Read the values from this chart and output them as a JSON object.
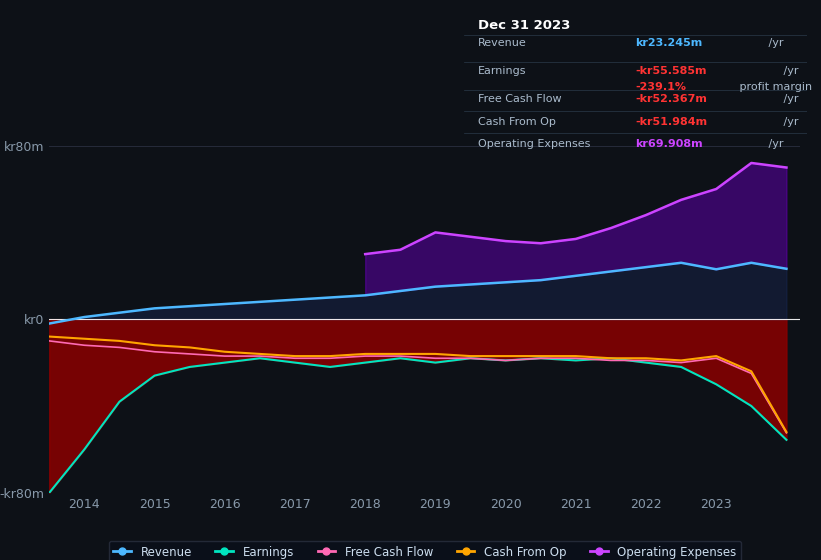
{
  "background_color": "#0d1117",
  "plot_bg_color": "#0d1117",
  "years": [
    2013.5,
    2014,
    2014.5,
    2015,
    2015.5,
    2016,
    2016.5,
    2017,
    2017.5,
    2018,
    2018.5,
    2019,
    2019.5,
    2020,
    2020.5,
    2021,
    2021.5,
    2022,
    2022.5,
    2023,
    2023.5,
    2024.0
  ],
  "revenue": [
    -2,
    1,
    3,
    5,
    6,
    7,
    8,
    9,
    10,
    11,
    13,
    15,
    16,
    17,
    18,
    20,
    22,
    24,
    26,
    23,
    26,
    23.245
  ],
  "earnings": [
    -80,
    -60,
    -38,
    -26,
    -22,
    -20,
    -18,
    -20,
    -22,
    -20,
    -18,
    -20,
    -18,
    -19,
    -18,
    -19,
    -18,
    -20,
    -22,
    -30,
    -40,
    -55.585
  ],
  "free_cash_flow": [
    -10,
    -12,
    -13,
    -15,
    -16,
    -17,
    -17,
    -18,
    -18,
    -17,
    -17,
    -18,
    -18,
    -19,
    -18,
    -18,
    -19,
    -19,
    -20,
    -18,
    -25,
    -52.367
  ],
  "cash_from_op": [
    -8,
    -9,
    -10,
    -12,
    -13,
    -15,
    -16,
    -17,
    -17,
    -16,
    -16,
    -16,
    -17,
    -17,
    -17,
    -17,
    -18,
    -18,
    -19,
    -17,
    -24,
    -51.984
  ],
  "operating_expenses": [
    0,
    0,
    0,
    0,
    0,
    0,
    0,
    0,
    0,
    30,
    32,
    40,
    38,
    36,
    35,
    37,
    42,
    48,
    55,
    60,
    72,
    69.908
  ],
  "ylim": [
    -80,
    80
  ],
  "xlim": [
    2013.5,
    2024.2
  ],
  "xlabel_ticks": [
    2014,
    2015,
    2016,
    2017,
    2018,
    2019,
    2020,
    2021,
    2022,
    2023
  ],
  "ytick_labels": [
    "kr80m",
    "kr0",
    "-kr80m"
  ],
  "ytick_positions": [
    80,
    0,
    -80
  ],
  "grid_color": "#2a3040",
  "line_colors": {
    "revenue": "#4db8ff",
    "earnings": "#00e5c0",
    "free_cash_flow": "#ff69b4",
    "cash_from_op": "#ffa500",
    "operating_expenses": "#cc44ff"
  },
  "op_exp_start_year": 2018.0,
  "info_box": {
    "bg_color": "#0a0f1a",
    "title": "Dec 31 2023",
    "rows": [
      {
        "label": "Revenue",
        "value": "kr23.245m",
        "suffix": " /yr",
        "value_color": "#4db8ff"
      },
      {
        "label": "Earnings",
        "value": "-kr55.585m",
        "suffix": " /yr",
        "value_color": "#ff3333"
      },
      {
        "label": "",
        "value": "-239.1%",
        "suffix": " profit margin",
        "value_color": "#ff3333"
      },
      {
        "label": "Free Cash Flow",
        "value": "-kr52.367m",
        "suffix": " /yr",
        "value_color": "#ff3333"
      },
      {
        "label": "Cash From Op",
        "value": "-kr51.984m",
        "suffix": " /yr",
        "value_color": "#ff3333"
      },
      {
        "label": "Operating Expenses",
        "value": "kr69.908m",
        "suffix": " /yr",
        "value_color": "#cc44ff"
      }
    ]
  },
  "legend_items": [
    {
      "label": "Revenue",
      "color": "#4db8ff"
    },
    {
      "label": "Earnings",
      "color": "#00e5c0"
    },
    {
      "label": "Free Cash Flow",
      "color": "#ff69b4"
    },
    {
      "label": "Cash From Op",
      "color": "#ffa500"
    },
    {
      "label": "Operating Expenses",
      "color": "#cc44ff"
    }
  ]
}
